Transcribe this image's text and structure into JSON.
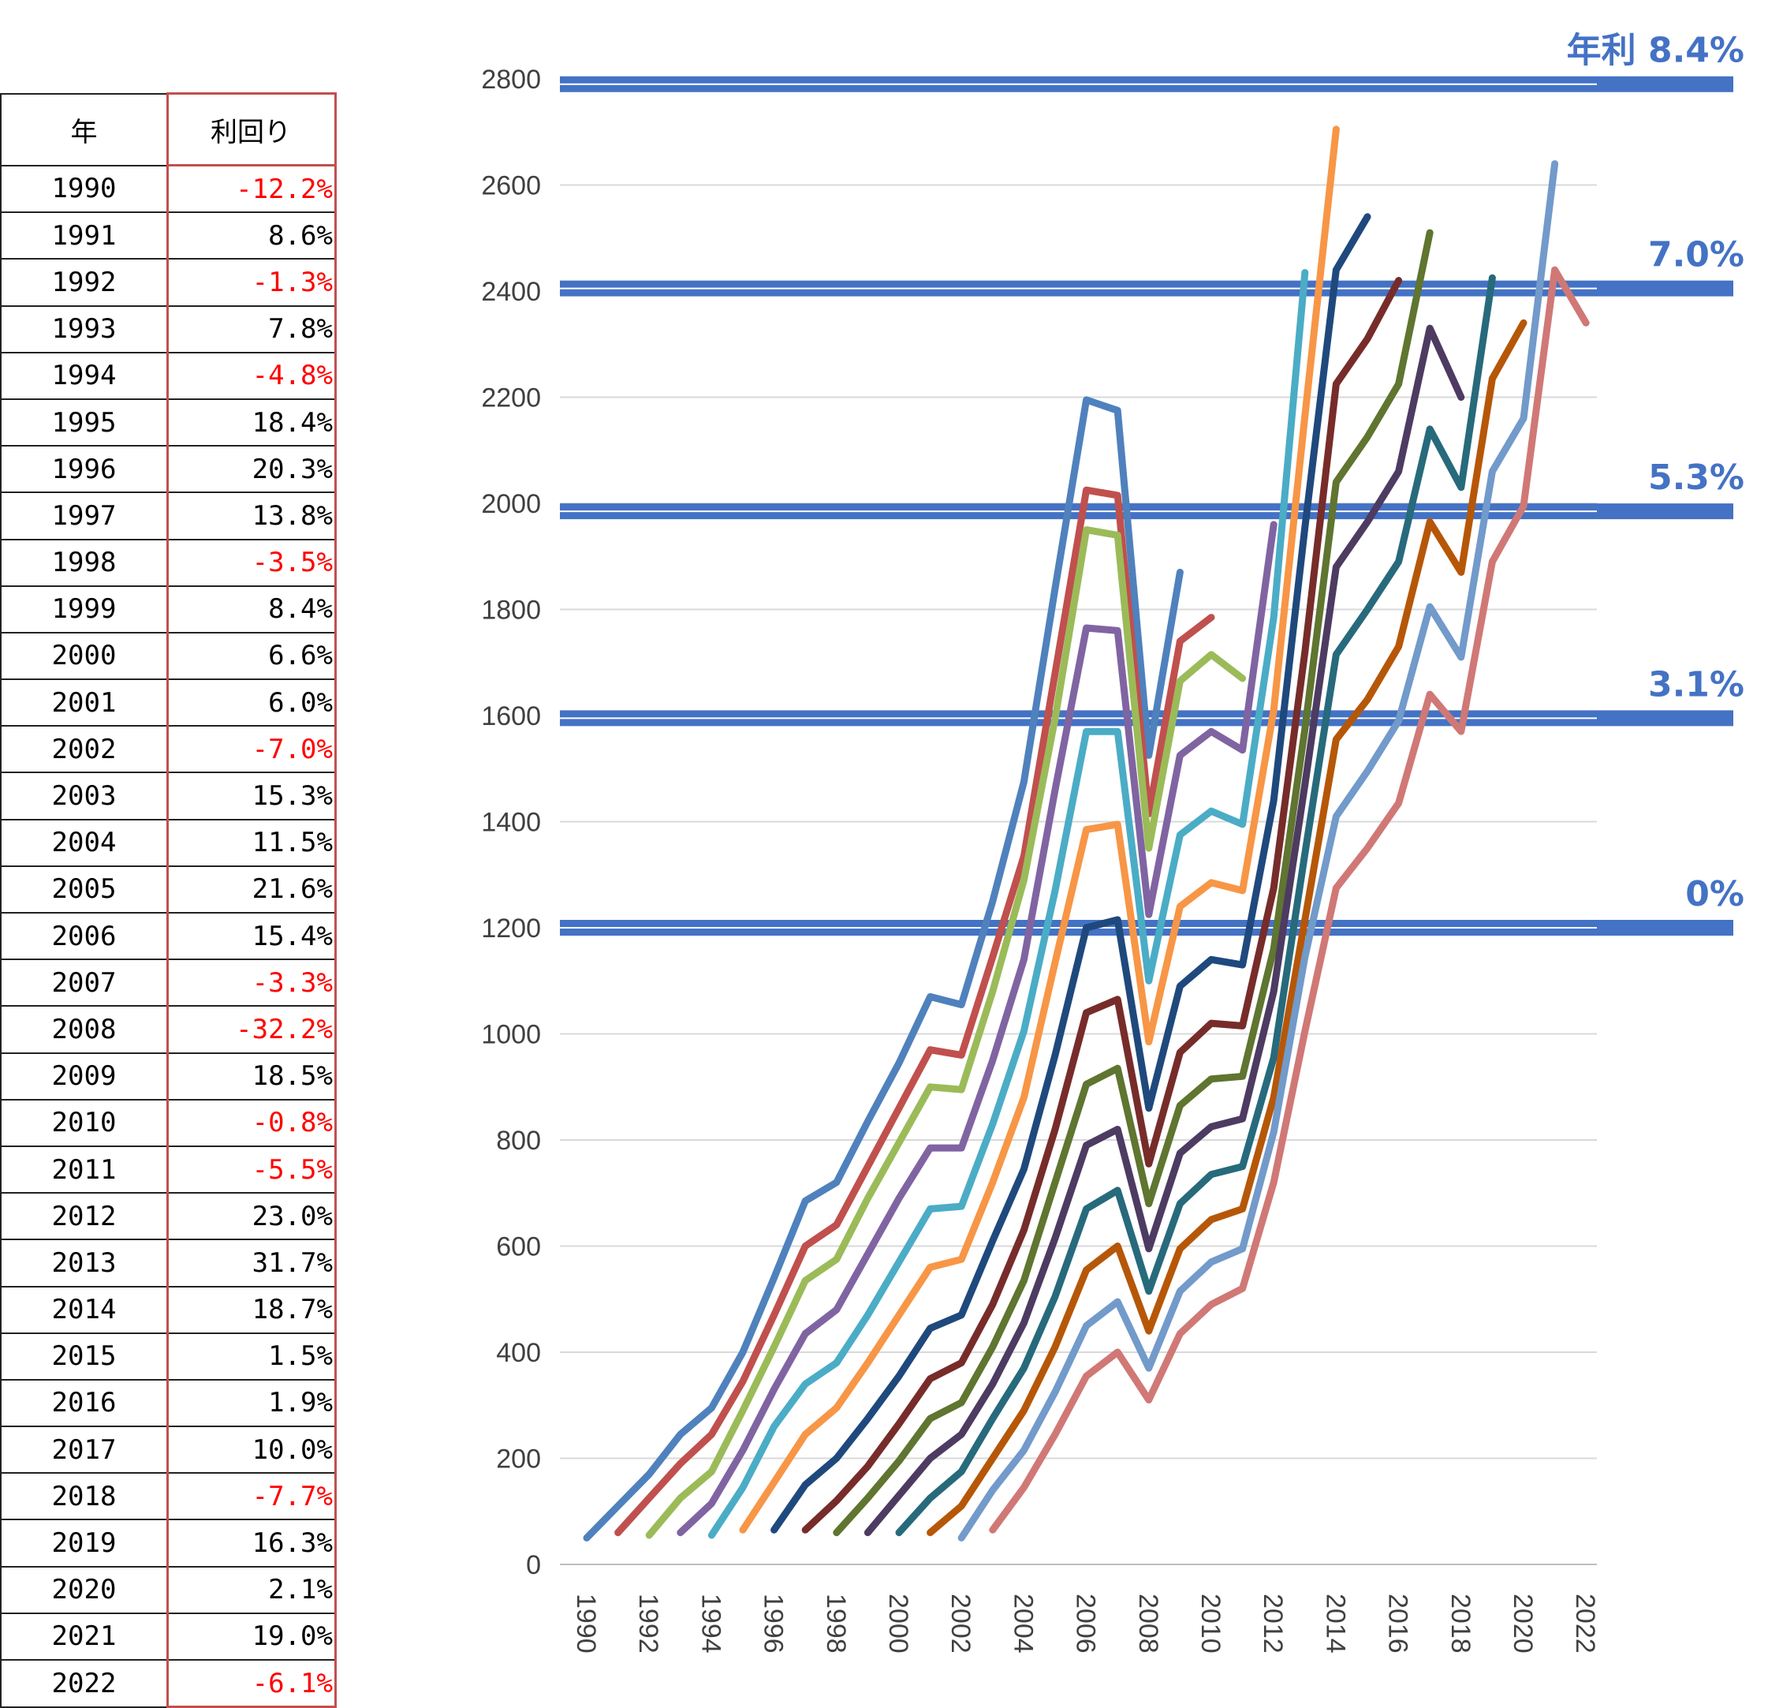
{
  "table": {
    "headers": [
      "年",
      "利回り"
    ],
    "rows": [
      {
        "year": "1990",
        "ret": "-12.2%",
        "neg": true
      },
      {
        "year": "1991",
        "ret": "8.6%",
        "neg": false
      },
      {
        "year": "1992",
        "ret": "-1.3%",
        "neg": true
      },
      {
        "year": "1993",
        "ret": "7.8%",
        "neg": false
      },
      {
        "year": "1994",
        "ret": "-4.8%",
        "neg": true
      },
      {
        "year": "1995",
        "ret": "18.4%",
        "neg": false
      },
      {
        "year": "1996",
        "ret": "20.3%",
        "neg": false
      },
      {
        "year": "1997",
        "ret": "13.8%",
        "neg": false
      },
      {
        "year": "1998",
        "ret": "-3.5%",
        "neg": true
      },
      {
        "year": "1999",
        "ret": "8.4%",
        "neg": false
      },
      {
        "year": "2000",
        "ret": "6.6%",
        "neg": false
      },
      {
        "year": "2001",
        "ret": "6.0%",
        "neg": false
      },
      {
        "year": "2002",
        "ret": "-7.0%",
        "neg": true
      },
      {
        "year": "2003",
        "ret": "15.3%",
        "neg": false
      },
      {
        "year": "2004",
        "ret": "11.5%",
        "neg": false
      },
      {
        "year": "2005",
        "ret": "21.6%",
        "neg": false
      },
      {
        "year": "2006",
        "ret": "15.4%",
        "neg": false
      },
      {
        "year": "2007",
        "ret": "-3.3%",
        "neg": true
      },
      {
        "year": "2008",
        "ret": "-32.2%",
        "neg": true
      },
      {
        "year": "2009",
        "ret": "18.5%",
        "neg": false
      },
      {
        "year": "2010",
        "ret": "-0.8%",
        "neg": true
      },
      {
        "year": "2011",
        "ret": "-5.5%",
        "neg": true
      },
      {
        "year": "2012",
        "ret": "23.0%",
        "neg": false
      },
      {
        "year": "2013",
        "ret": "31.7%",
        "neg": false
      },
      {
        "year": "2014",
        "ret": "18.7%",
        "neg": false
      },
      {
        "year": "2015",
        "ret": "1.5%",
        "neg": false
      },
      {
        "year": "2016",
        "ret": "1.9%",
        "neg": false
      },
      {
        "year": "2017",
        "ret": "10.0%",
        "neg": false
      },
      {
        "year": "2018",
        "ret": "-7.7%",
        "neg": true
      },
      {
        "year": "2019",
        "ret": "16.3%",
        "neg": false
      },
      {
        "year": "2020",
        "ret": "2.1%",
        "neg": false
      },
      {
        "year": "2021",
        "ret": "19.0%",
        "neg": false
      },
      {
        "year": "2022",
        "ret": "-6.1%",
        "neg": true
      }
    ]
  },
  "chart_data": {
    "type": "line",
    "title": "",
    "xlabel": "",
    "ylabel": "",
    "ylim": [
      0,
      2800
    ],
    "y_ticks": [
      0,
      200,
      400,
      600,
      800,
      1000,
      1200,
      1400,
      1600,
      1800,
      2000,
      2200,
      2400,
      2600,
      2800
    ],
    "x_ticks": [
      "1990",
      "1992",
      "1994",
      "1996",
      "1998",
      "2000",
      "2002",
      "2004",
      "2006",
      "2008",
      "2010",
      "2012",
      "2014",
      "2016",
      "2018",
      "2020",
      "2022"
    ],
    "grid": true,
    "reference_lines": [
      {
        "label": "年利 8.4%",
        "value": 2790
      },
      {
        "label": "7.0%",
        "value": 2405
      },
      {
        "label": "5.3%",
        "value": 1985
      },
      {
        "label": "3.1%",
        "value": 1595
      },
      {
        "label": "0%",
        "value": 1200
      }
    ],
    "series": [
      {
        "color": "#4f81bd",
        "start": 1990,
        "values": [
          50,
          110,
          170,
          245,
          295,
          400,
          540,
          685,
          720,
          835,
          945,
          1070,
          1055,
          1250,
          1475,
          1840,
          2195,
          2175,
          1525,
          1870
        ]
      },
      {
        "color": "#c0504d",
        "start": 1991,
        "values": [
          60,
          125,
          190,
          245,
          345,
          470,
          600,
          640,
          750,
          860,
          970,
          960,
          1145,
          1335,
          1680,
          2025,
          2015,
          1415,
          1740,
          1785
        ]
      },
      {
        "color": "#9bbb59",
        "start": 1992,
        "values": [
          55,
          125,
          175,
          290,
          410,
          535,
          575,
          690,
          795,
          900,
          895,
          1080,
          1290,
          1595,
          1950,
          1940,
          1350,
          1665,
          1715,
          1670
        ]
      },
      {
        "color": "#8064a2",
        "start": 1993,
        "values": [
          60,
          115,
          215,
          330,
          435,
          480,
          585,
          690,
          785,
          785,
          950,
          1140,
          1460,
          1765,
          1760,
          1225,
          1525,
          1570,
          1535,
          1960
        ]
      },
      {
        "color": "#4bacc6",
        "start": 1994,
        "values": [
          55,
          145,
          260,
          340,
          380,
          470,
          570,
          670,
          675,
          830,
          1005,
          1270,
          1570,
          1570,
          1100,
          1375,
          1420,
          1395,
          1785,
          2435
        ]
      },
      {
        "color": "#f79646",
        "start": 1995,
        "values": [
          65,
          155,
          245,
          295,
          380,
          470,
          560,
          575,
          720,
          880,
          1135,
          1385,
          1395,
          985,
          1240,
          1285,
          1270,
          1610,
          2165,
          2705
        ]
      },
      {
        "color": "#1f497d",
        "start": 1996,
        "values": [
          65,
          150,
          200,
          275,
          355,
          445,
          470,
          610,
          745,
          960,
          1200,
          1215,
          860,
          1090,
          1140,
          1130,
          1440,
          1955,
          2440,
          2540
        ]
      },
      {
        "color": "#772c2a",
        "start": 1997,
        "values": [
          65,
          120,
          185,
          265,
          350,
          380,
          490,
          630,
          820,
          1040,
          1065,
          755,
          965,
          1020,
          1015,
          1275,
          1720,
          2225,
          2310,
          2420
        ]
      },
      {
        "color": "#5f7530",
        "start": 1998,
        "values": [
          60,
          125,
          195,
          275,
          305,
          410,
          535,
          720,
          905,
          935,
          680,
          865,
          915,
          920,
          1160,
          1575,
          2040,
          2125,
          2225,
          2510
        ]
      },
      {
        "color": "#4d3b62",
        "start": 1999,
        "values": [
          60,
          130,
          200,
          245,
          340,
          455,
          615,
          790,
          820,
          595,
          775,
          825,
          840,
          1080,
          1470,
          1880,
          1965,
          2060,
          2330,
          2200
        ]
      },
      {
        "color": "#276a7c",
        "start": 2000,
        "values": [
          60,
          125,
          175,
          275,
          370,
          505,
          670,
          705,
          515,
          680,
          735,
          750,
          955,
          1340,
          1715,
          1800,
          1890,
          2140,
          2030,
          2425
        ]
      },
      {
        "color": "#b65708",
        "start": 2001,
        "values": [
          60,
          110,
          200,
          290,
          410,
          555,
          600,
          440,
          595,
          650,
          670,
          880,
          1215,
          1555,
          1630,
          1730,
          1965,
          1870,
          2235,
          2340
        ]
      },
      {
        "color": "#729aca",
        "start": 2002,
        "values": [
          50,
          140,
          215,
          325,
          450,
          495,
          370,
          515,
          570,
          595,
          815,
          1145,
          1410,
          1495,
          1590,
          1805,
          1710,
          2060,
          2160,
          2640
        ]
      },
      {
        "color": "#d07876",
        "start": 2003,
        "values": [
          65,
          145,
          245,
          355,
          400,
          310,
          435,
          490,
          520,
          720,
          1005,
          1275,
          1350,
          1435,
          1640,
          1570,
          1890,
          1995,
          2440,
          2340
        ]
      }
    ]
  }
}
